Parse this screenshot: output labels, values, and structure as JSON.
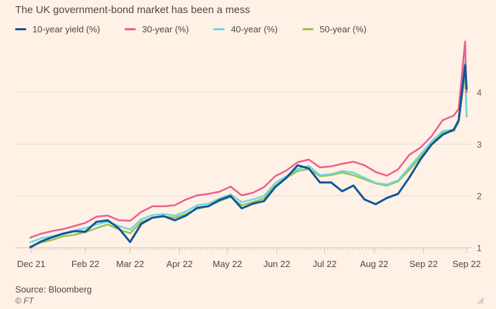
{
  "chart_data": {
    "type": "line",
    "title": "The UK government-bond market has been a mess",
    "source": "Source: Bloomberg",
    "credit": "© FT",
    "ylim": [
      0.85,
      5.05
    ],
    "yticks": [
      1,
      2,
      3,
      4
    ],
    "y_axis_side": "right",
    "grid": true,
    "legend_placement": "top-left",
    "xticks": [
      {
        "date": "2021-12-29",
        "label": "Dec 21"
      },
      {
        "date": "2022-02-01",
        "label": "Feb 22"
      },
      {
        "date": "2022-03-01",
        "label": "Mar 22"
      },
      {
        "date": "2022-04-01",
        "label": "Apr 22"
      },
      {
        "date": "2022-05-01",
        "label": "May 22"
      },
      {
        "date": "2022-06-01",
        "label": "Jun 22"
      },
      {
        "date": "2022-07-01",
        "label": "Jul 22"
      },
      {
        "date": "2022-08-01",
        "label": "Aug 22"
      },
      {
        "date": "2022-09-01",
        "label": "Sep 22"
      },
      {
        "date": "2022-09-28",
        "label": "Sep 22"
      }
    ],
    "x": [
      "2021-12-28",
      "2022-01-04",
      "2022-01-11",
      "2022-01-18",
      "2022-01-25",
      "2022-02-01",
      "2022-02-08",
      "2022-02-15",
      "2022-02-22",
      "2022-03-01",
      "2022-03-08",
      "2022-03-15",
      "2022-03-22",
      "2022-03-29",
      "2022-04-05",
      "2022-04-12",
      "2022-04-19",
      "2022-04-26",
      "2022-05-03",
      "2022-05-10",
      "2022-05-17",
      "2022-05-24",
      "2022-05-31",
      "2022-06-07",
      "2022-06-14",
      "2022-06-21",
      "2022-06-28",
      "2022-07-05",
      "2022-07-12",
      "2022-07-19",
      "2022-07-26",
      "2022-08-02",
      "2022-08-09",
      "2022-08-16",
      "2022-08-23",
      "2022-08-30",
      "2022-09-06",
      "2022-09-13",
      "2022-09-20",
      "2022-09-23",
      "2022-09-27",
      "2022-09-28"
    ],
    "series": [
      {
        "name": "10-year yield (%)",
        "color": "#0f5499",
        "values": [
          1.0,
          1.12,
          1.2,
          1.27,
          1.32,
          1.31,
          1.5,
          1.53,
          1.37,
          1.11,
          1.46,
          1.58,
          1.61,
          1.53,
          1.62,
          1.77,
          1.8,
          1.92,
          2.0,
          1.76,
          1.85,
          1.9,
          2.17,
          2.35,
          2.59,
          2.53,
          2.26,
          2.26,
          2.09,
          2.2,
          1.93,
          1.84,
          1.96,
          2.04,
          2.35,
          2.7,
          2.99,
          3.18,
          3.28,
          3.46,
          4.52,
          4.05
        ]
      },
      {
        "name": "30-year (%)",
        "color": "#eb5e8d",
        "values": [
          1.19,
          1.27,
          1.32,
          1.36,
          1.42,
          1.48,
          1.6,
          1.62,
          1.53,
          1.52,
          1.69,
          1.8,
          1.8,
          1.82,
          1.93,
          2.01,
          2.04,
          2.08,
          2.18,
          2.01,
          2.06,
          2.17,
          2.38,
          2.49,
          2.65,
          2.7,
          2.55,
          2.57,
          2.62,
          2.66,
          2.59,
          2.46,
          2.39,
          2.51,
          2.79,
          2.93,
          3.15,
          3.46,
          3.55,
          3.68,
          4.98,
          3.99
        ]
      },
      {
        "name": "40-year (%)",
        "color": "#6fd6e2",
        "values": [
          1.1,
          1.18,
          1.22,
          1.28,
          1.33,
          1.38,
          1.45,
          1.5,
          1.42,
          1.35,
          1.55,
          1.63,
          1.65,
          1.62,
          1.7,
          1.82,
          1.85,
          1.95,
          2.03,
          1.88,
          1.93,
          2.0,
          2.25,
          2.38,
          2.52,
          2.58,
          2.4,
          2.42,
          2.48,
          2.45,
          2.35,
          2.25,
          2.22,
          2.3,
          2.55,
          2.8,
          3.05,
          3.25,
          3.28,
          3.45,
          4.6,
          3.55
        ]
      },
      {
        "name": "50-year (%)",
        "color": "#96c24a",
        "values": [
          1.02,
          1.1,
          1.15,
          1.22,
          1.25,
          1.3,
          1.38,
          1.45,
          1.35,
          1.28,
          1.5,
          1.58,
          1.6,
          1.58,
          1.65,
          1.75,
          1.8,
          1.9,
          1.98,
          1.82,
          1.88,
          1.95,
          2.2,
          2.35,
          2.48,
          2.52,
          2.38,
          2.4,
          2.45,
          2.4,
          2.32,
          2.24,
          2.2,
          2.28,
          2.5,
          2.75,
          3.0,
          3.22,
          3.25,
          3.42,
          4.35,
          3.52
        ]
      }
    ]
  }
}
